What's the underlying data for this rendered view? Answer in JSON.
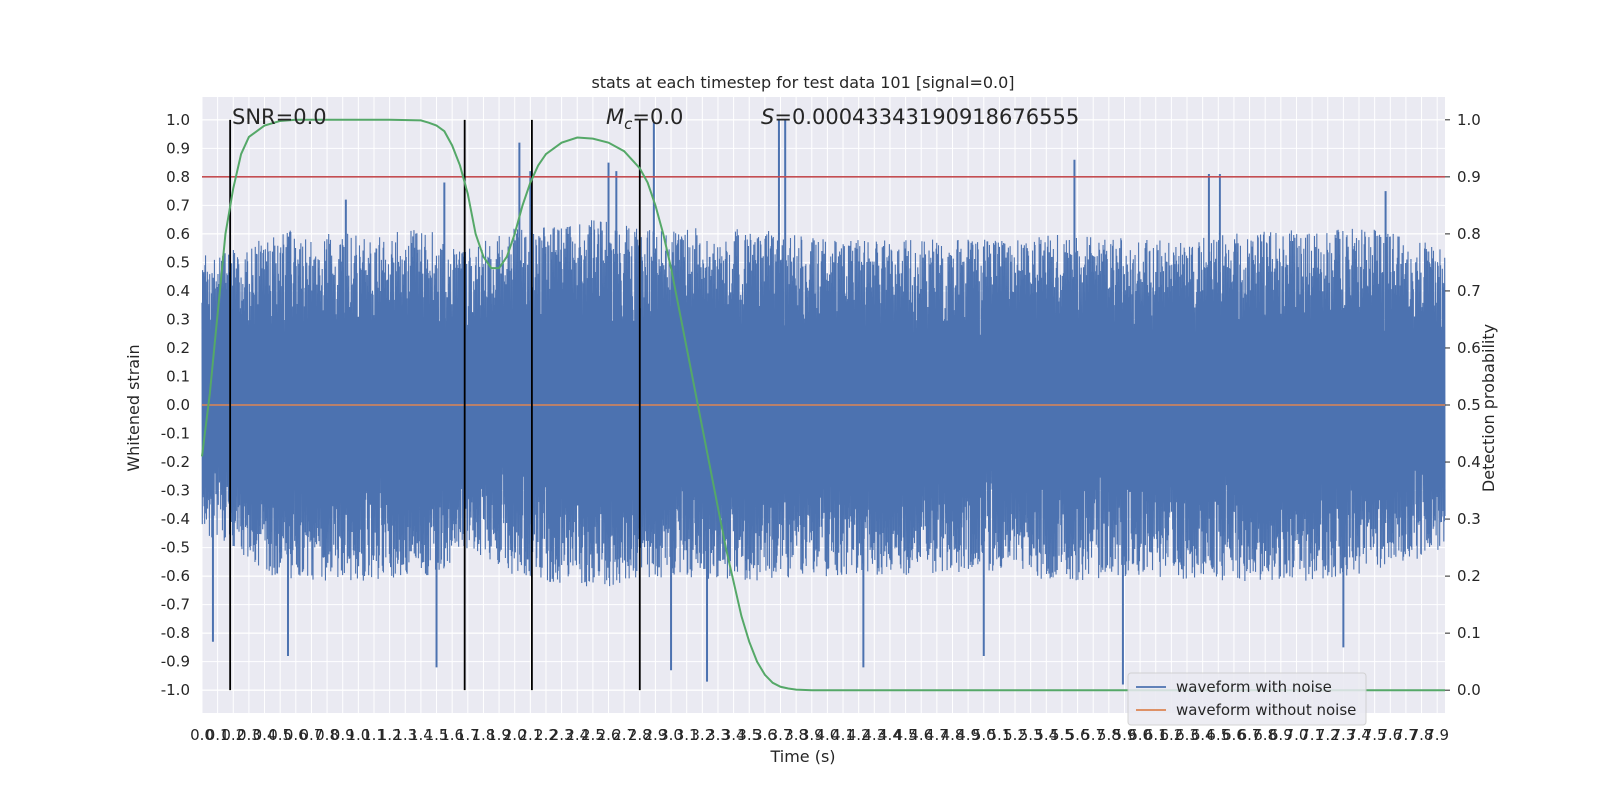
{
  "chart_data": {
    "type": "line",
    "title": "stats at each timestep for test data 101 [signal=0.0]",
    "xlabel": "Time (s)",
    "ylabel_left": "Whitened strain",
    "ylabel_right": "Detection probability",
    "xlim": [
      0.0,
      7.95
    ],
    "ylim_left": [
      -1.08,
      1.08
    ],
    "ylim_right": [
      -0.04,
      1.04
    ],
    "x_ticks": [
      0.0,
      0.1,
      0.2,
      0.3,
      0.4,
      0.5,
      0.6,
      0.7,
      0.8,
      0.9,
      1.0,
      1.1,
      1.2,
      1.3,
      1.4,
      1.5,
      1.6,
      1.7,
      1.8,
      1.9,
      2.0,
      2.1,
      2.2,
      2.3,
      2.4,
      2.5,
      2.6,
      2.7,
      2.8,
      2.9,
      3.0,
      3.1,
      3.2,
      3.3,
      3.4,
      3.5,
      3.6,
      3.7,
      3.8,
      3.9,
      4.0,
      4.1,
      4.2,
      4.3,
      4.4,
      4.5,
      4.6,
      4.7,
      4.8,
      4.9,
      5.0,
      5.1,
      5.2,
      5.3,
      5.4,
      5.5,
      5.6,
      5.7,
      5.8,
      5.9,
      6.0,
      6.1,
      6.2,
      6.3,
      6.4,
      6.5,
      6.6,
      6.7,
      6.8,
      6.9,
      7.0,
      7.1,
      7.2,
      7.3,
      7.4,
      7.5,
      7.6,
      7.7,
      7.8,
      7.9
    ],
    "y_ticks_left": [
      -1.0,
      -0.9,
      -0.8,
      -0.7,
      -0.6,
      -0.5,
      -0.4,
      -0.3,
      -0.2,
      -0.1,
      0.0,
      0.1,
      0.2,
      0.3,
      0.4,
      0.5,
      0.6,
      0.7,
      0.8,
      0.9,
      1.0
    ],
    "y_ticks_right": [
      0.0,
      0.1,
      0.2,
      0.3,
      0.4,
      0.5,
      0.6,
      0.7,
      0.8,
      0.9,
      1.0
    ],
    "grid": true,
    "legend_position": "lower-right",
    "annotations": [
      {
        "text": "SNR=0.0"
      },
      {
        "text_main": "M",
        "text_sub": "c",
        "text_rest": "=0.0"
      },
      {
        "text_main": "S",
        "text_rest": "=0.00043343190918676555"
      }
    ],
    "vlines_x": [
      0.18,
      1.68,
      2.11,
      2.8
    ],
    "threshold_right": 0.9,
    "series": [
      {
        "name": "waveform with noise",
        "color": "#4c72b0",
        "axis": "left",
        "noise_envelope": {
          "t": [
            0.0,
            0.2,
            0.5,
            1.0,
            1.5,
            1.7,
            2.0,
            2.5,
            3.0,
            3.5,
            4.0,
            4.5,
            5.0,
            5.5,
            6.0,
            6.5,
            7.0,
            7.5,
            7.95
          ],
          "upper": [
            0.55,
            0.55,
            0.62,
            0.6,
            0.62,
            0.55,
            0.62,
            0.65,
            0.62,
            0.62,
            0.58,
            0.58,
            0.58,
            0.6,
            0.58,
            0.6,
            0.62,
            0.62,
            0.55
          ],
          "lower": [
            -0.45,
            -0.5,
            -0.62,
            -0.62,
            -0.6,
            -0.5,
            -0.6,
            -0.65,
            -0.6,
            -0.62,
            -0.6,
            -0.6,
            -0.58,
            -0.62,
            -0.6,
            -0.62,
            -0.62,
            -0.6,
            -0.5
          ]
        },
        "spikes": [
          [
            0.07,
            -0.83
          ],
          [
            0.55,
            -0.88
          ],
          [
            0.92,
            0.72
          ],
          [
            1.5,
            -0.92
          ],
          [
            1.55,
            0.78
          ],
          [
            2.03,
            0.92
          ],
          [
            2.1,
            0.82
          ],
          [
            2.6,
            0.85
          ],
          [
            2.65,
            0.82
          ],
          [
            2.89,
            0.99
          ],
          [
            3.0,
            -0.93
          ],
          [
            3.23,
            -0.97
          ],
          [
            3.69,
            1.0
          ],
          [
            3.73,
            1.0
          ],
          [
            4.23,
            -0.92
          ],
          [
            5.0,
            -0.88
          ],
          [
            5.58,
            0.86
          ],
          [
            5.89,
            -0.98
          ],
          [
            6.44,
            0.81
          ],
          [
            6.51,
            0.81
          ],
          [
            7.3,
            -0.85
          ],
          [
            7.57,
            0.75
          ]
        ]
      },
      {
        "name": "waveform without noise",
        "color": "#dd8452",
        "axis": "left",
        "constant": 0.0
      },
      {
        "name": "detection probability",
        "color": "#55a868",
        "axis": "right",
        "x": [
          0.0,
          0.05,
          0.1,
          0.15,
          0.2,
          0.25,
          0.3,
          0.4,
          0.5,
          0.6,
          0.8,
          1.0,
          1.2,
          1.4,
          1.45,
          1.5,
          1.55,
          1.6,
          1.65,
          1.7,
          1.75,
          1.8,
          1.85,
          1.9,
          1.95,
          2.0,
          2.05,
          2.1,
          2.15,
          2.2,
          2.3,
          2.4,
          2.5,
          2.6,
          2.7,
          2.8,
          2.85,
          2.9,
          2.95,
          3.0,
          3.05,
          3.1,
          3.15,
          3.2,
          3.25,
          3.3,
          3.35,
          3.4,
          3.45,
          3.5,
          3.55,
          3.6,
          3.65,
          3.7,
          3.75,
          3.8,
          3.9,
          4.0,
          4.5,
          5.0,
          6.0,
          7.0,
          7.95
        ],
        "y": [
          0.41,
          0.52,
          0.66,
          0.8,
          0.88,
          0.94,
          0.97,
          0.99,
          0.998,
          1.0,
          1.0,
          1.0,
          1.0,
          0.999,
          0.995,
          0.99,
          0.98,
          0.955,
          0.92,
          0.87,
          0.8,
          0.76,
          0.74,
          0.74,
          0.76,
          0.8,
          0.85,
          0.89,
          0.92,
          0.94,
          0.96,
          0.969,
          0.967,
          0.96,
          0.945,
          0.915,
          0.89,
          0.85,
          0.8,
          0.74,
          0.67,
          0.6,
          0.53,
          0.46,
          0.39,
          0.32,
          0.25,
          0.19,
          0.13,
          0.085,
          0.05,
          0.027,
          0.013,
          0.006,
          0.003,
          0.001,
          0.0,
          0.0,
          0.0,
          0.0,
          0.0,
          0.0,
          0.0
        ]
      }
    ],
    "colors": {
      "axes_bg": "#eaeaf2",
      "grid": "#ffffff",
      "threshold": "#c44e52",
      "vline": "#000000",
      "text": "#262626"
    }
  }
}
